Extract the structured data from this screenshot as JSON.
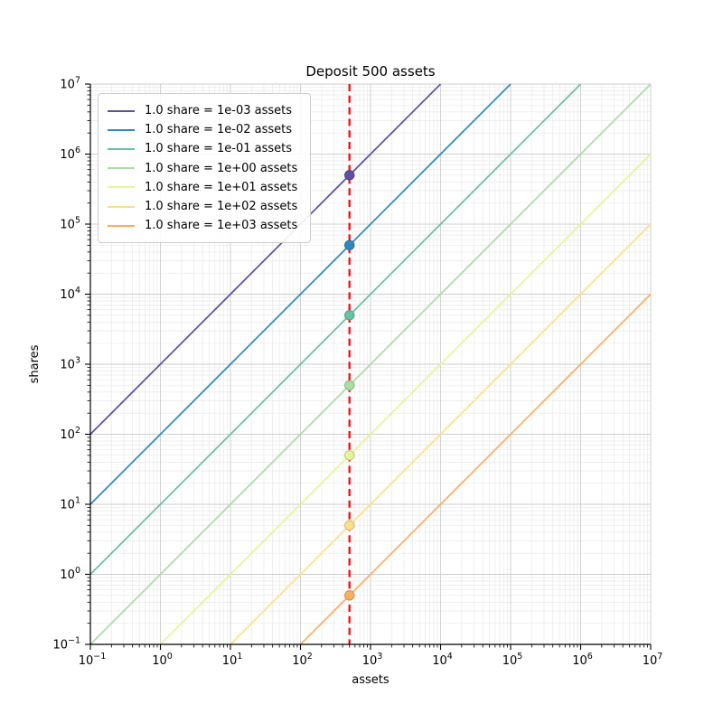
{
  "chart_data": {
    "type": "line",
    "title": "Deposit 500 assets",
    "xlabel": "assets",
    "ylabel": "shares",
    "xscale": "log",
    "yscale": "log",
    "xlim": [
      0.1,
      10000000
    ],
    "ylim": [
      0.1,
      10000000
    ],
    "x_tick_exponents": [
      -1,
      0,
      1,
      2,
      3,
      4,
      5,
      6,
      7
    ],
    "y_tick_exponents": [
      -1,
      0,
      1,
      2,
      3,
      4,
      5,
      6,
      7
    ],
    "grid": "both",
    "legend_position": "upper left",
    "deposit_assets": 500,
    "series": [
      {
        "name": "1.0 share = 1e-03 assets",
        "color": "#5e4fa2",
        "assets_per_share": 0.001,
        "marker": {
          "x": 500,
          "y": 500000
        }
      },
      {
        "name": "1.0 share = 1e-02 assets",
        "color": "#3288bd",
        "assets_per_share": 0.01,
        "marker": {
          "x": 500,
          "y": 50000
        }
      },
      {
        "name": "1.0 share = 1e-01 assets",
        "color": "#66c2a5",
        "assets_per_share": 0.1,
        "marker": {
          "x": 500,
          "y": 5000
        }
      },
      {
        "name": "1.0 share = 1e+00 assets",
        "color": "#abdda4",
        "assets_per_share": 1.0,
        "marker": {
          "x": 500,
          "y": 500
        }
      },
      {
        "name": "1.0 share = 1e+01 assets",
        "color": "#e6f598",
        "assets_per_share": 10.0,
        "marker": {
          "x": 500,
          "y": 50
        }
      },
      {
        "name": "1.0 share = 1e+02 assets",
        "color": "#fee08b",
        "assets_per_share": 100.0,
        "marker": {
          "x": 500,
          "y": 5
        }
      },
      {
        "name": "1.0 share = 1e+03 assets",
        "color": "#fdae61",
        "assets_per_share": 1000.0,
        "marker": {
          "x": 500,
          "y": 0.5
        }
      }
    ],
    "vline": {
      "x": 500,
      "color": "#ff0000",
      "style": "dashed",
      "width": 2.2
    }
  },
  "colors": {
    "major_grid": "#cdcdcd",
    "minor_grid": "#e9e9e9",
    "spine": "#000000",
    "text": "#000000"
  }
}
